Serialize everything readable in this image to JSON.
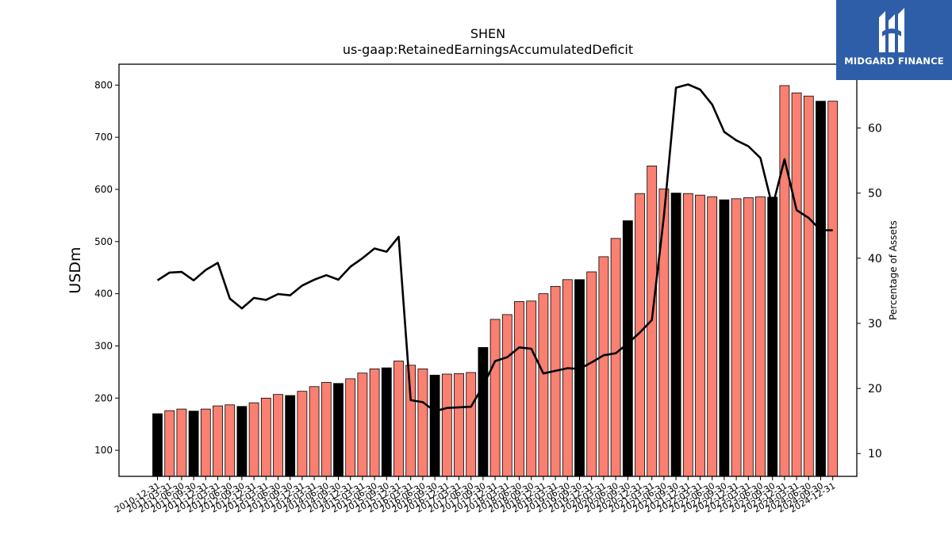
{
  "chart_data": {
    "type": "bar",
    "title": "SHEN",
    "subtitle": "us-gaap:RetainedEarningsAccumulatedDeficit",
    "ylabel": "USDm",
    "y2label": "Percentage of Assets",
    "ylim": [
      50,
      840
    ],
    "y2lim": [
      6.5,
      69.8
    ],
    "yticks": [
      100,
      200,
      300,
      400,
      500,
      600,
      700,
      800
    ],
    "y2ticks": [
      10,
      20,
      30,
      40,
      50,
      60
    ],
    "categories": [
      "2010-12-31",
      "2011-03-31",
      "2011-06-30",
      "2011-09-30",
      "2011-12-31",
      "2012-03-31",
      "2012-06-30",
      "2012-09-30",
      "2012-12-31",
      "2013-03-31",
      "2013-06-30",
      "2013-09-30",
      "2013-12-31",
      "2014-03-31",
      "2014-06-30",
      "2014-09-30",
      "2014-12-31",
      "2015-03-31",
      "2015-06-30",
      "2015-09-30",
      "2015-12-31",
      "2016-03-31",
      "2016-06-30",
      "2016-09-30",
      "2016-12-31",
      "2017-03-31",
      "2017-06-30",
      "2017-09-30",
      "2017-12-31",
      "2018-03-31",
      "2018-06-30",
      "2018-09-30",
      "2018-12-31",
      "2019-03-31",
      "2019-06-30",
      "2019-09-30",
      "2019-12-31",
      "2020-03-31",
      "2020-06-30",
      "2020-09-30",
      "2020-12-31",
      "2021-03-31",
      "2021-06-30",
      "2021-09-30",
      "2021-12-31",
      "2022-03-31",
      "2022-06-30",
      "2022-09-30",
      "2022-12-31",
      "2023-03-31",
      "2023-06-30",
      "2023-09-30",
      "2023-12-31",
      "2024-03-31",
      "2024-06-30",
      "2024-09-30",
      "2024-12-31"
    ],
    "series": [
      {
        "type": "bar",
        "values": [
          170,
          176,
          179,
          175,
          179,
          185,
          187,
          184,
          191,
          200,
          207,
          205,
          213,
          222,
          230,
          228,
          237,
          248,
          256,
          258,
          271,
          263,
          256,
          244,
          246,
          247,
          249,
          297,
          351,
          360,
          385,
          386,
          400,
          414,
          427,
          427,
          442,
          471,
          506,
          540,
          592,
          645,
          601,
          593,
          592,
          589,
          586,
          580,
          582,
          584,
          586,
          585,
          799,
          785,
          779,
          769,
          769
        ],
        "highlight_color": "#000000",
        "default_color": "#fa8072",
        "highlight_indices": [
          0,
          3,
          7,
          11,
          15,
          19,
          23,
          27,
          35,
          39,
          43,
          47,
          51,
          55
        ]
      },
      {
        "type": "line",
        "axis": "right",
        "values": [
          36.6,
          37.8,
          37.9,
          36.6,
          38.2,
          39.3,
          33.8,
          32.3,
          33.9,
          33.6,
          34.5,
          34.3,
          35.8,
          36.7,
          37.4,
          36.7,
          38.7,
          40.0,
          41.5,
          41.0,
          43.3,
          18.2,
          17.9,
          16.5,
          17.0,
          17.1,
          17.2,
          20.4,
          24.2,
          24.8,
          26.3,
          26.1,
          22.3,
          22.7,
          23.1,
          23.0,
          24.0,
          25.1,
          25.4,
          26.9,
          28.6,
          30.5,
          46.5,
          66.2,
          66.7,
          65.9,
          63.6,
          59.4,
          58.1,
          57.2,
          55.4,
          47.9,
          55.2,
          47.4,
          46.2,
          44.3,
          44.3
        ]
      }
    ],
    "grid": false,
    "legend": "none"
  },
  "brand": {
    "name": "MIDGARD FINANCE",
    "icon": "midgard-logo-icon",
    "color": "#2f5ea8"
  },
  "colors": {
    "bar_default": "#fa8072",
    "bar_highlight": "#000000",
    "line": "#000000"
  }
}
